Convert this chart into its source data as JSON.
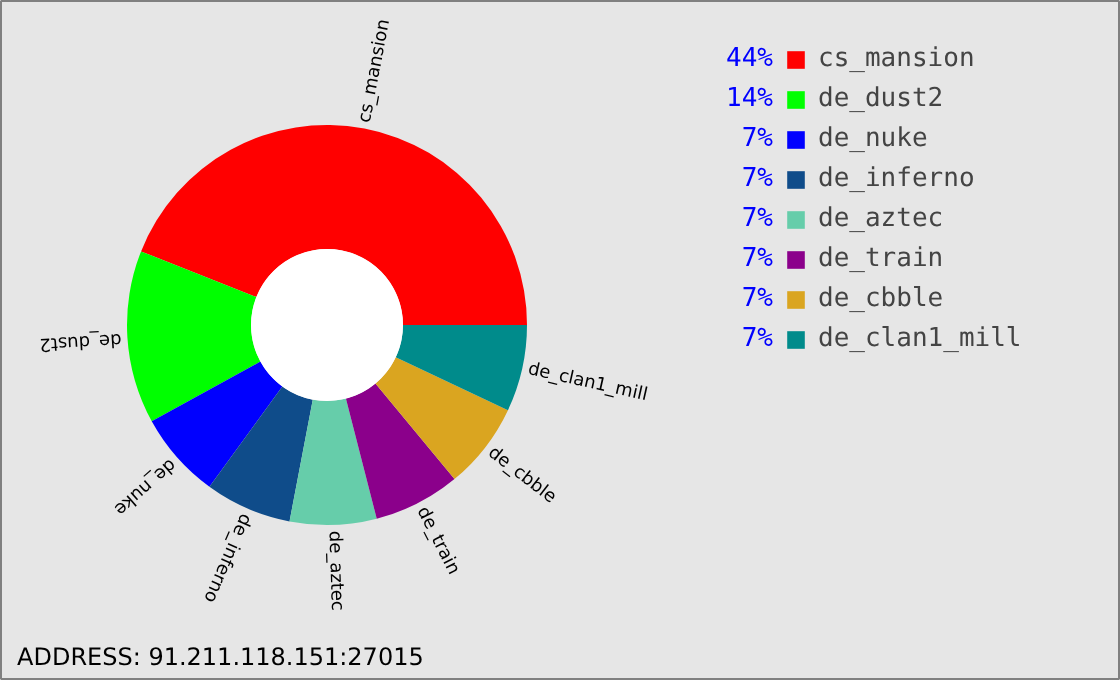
{
  "chart_data": {
    "type": "donut",
    "categories": [
      "cs_mansion",
      "de_dust2",
      "de_nuke",
      "de_inferno",
      "de_aztec",
      "de_train",
      "de_cbble",
      "de_clan1_mill"
    ],
    "values": [
      44,
      14,
      7,
      7,
      7,
      7,
      7,
      7
    ],
    "value_labels": [
      "44%",
      "14%",
      "7%",
      "7%",
      "7%",
      "7%",
      "7%",
      "7%"
    ],
    "colors": [
      "#ff0000",
      "#00ff00",
      "#0000ff",
      "#0f4c8a",
      "#66cdaa",
      "#8b008b",
      "#daa520",
      "#008b8b"
    ],
    "annotations": [
      "ADDRESS: 91.211.118.151:27015"
    ],
    "legend": "right"
  }
}
